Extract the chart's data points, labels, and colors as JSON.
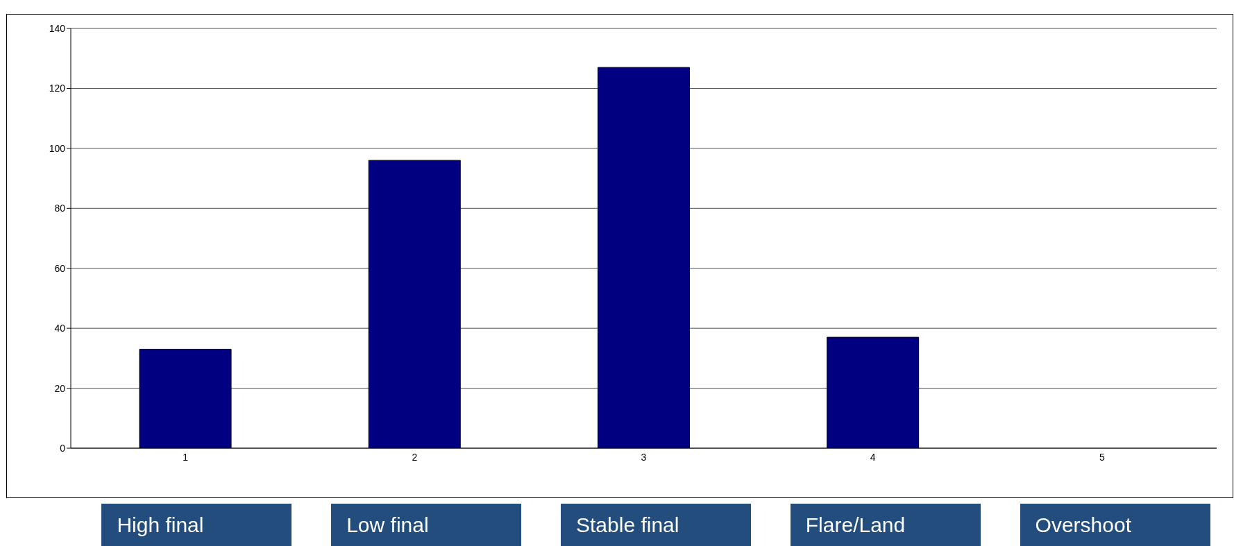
{
  "chart_data": {
    "type": "bar",
    "categories": [
      "1",
      "2",
      "3",
      "4",
      "5"
    ],
    "values": [
      33,
      96,
      127,
      37,
      0
    ],
    "color": "#000080",
    "ylim": [
      0,
      140
    ],
    "yticks": [
      0,
      20,
      40,
      60,
      80,
      100,
      120,
      140
    ],
    "grid": "y",
    "legend": false,
    "annotations": [
      "High final",
      "Low final",
      "Stable final",
      "Flare/Land",
      "Overshoot"
    ]
  }
}
